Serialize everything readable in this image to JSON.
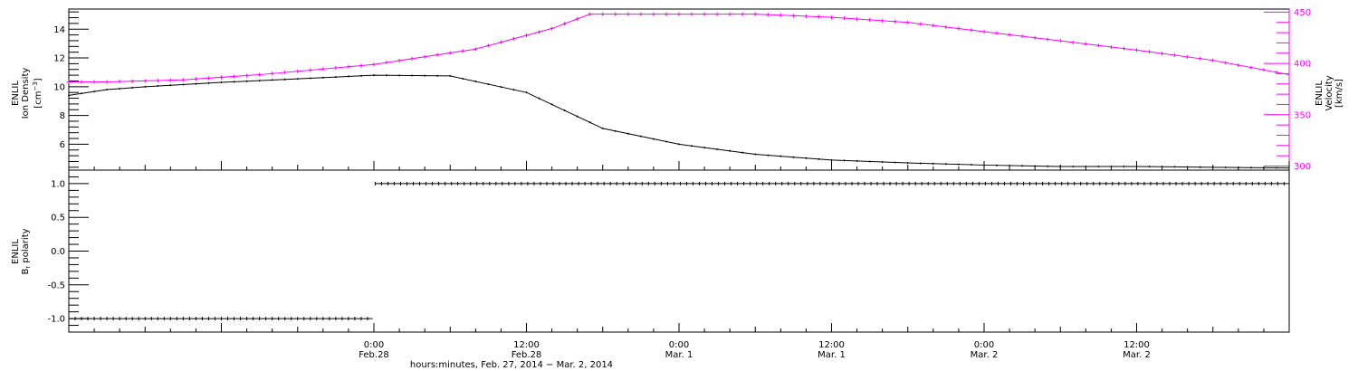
{
  "chart_data": [
    {
      "type": "line",
      "panel": "top",
      "left_axis": {
        "label_line1": "ENLIL",
        "label_line2": "Ion Density",
        "label_line3": "[cm",
        "label_exp": "−3",
        "label_close": "]",
        "ylim": [
          4.2,
          15.4
        ],
        "ticks": [
          6,
          8,
          10,
          12,
          14
        ],
        "tick_labels": [
          "6",
          "8",
          "10",
          "12",
          "14"
        ]
      },
      "right_axis": {
        "label_line1": "ENLIL",
        "label_line2": "Velocity",
        "label_line3": "[km/s]",
        "ylim": [
          296,
          453
        ],
        "ticks": [
          300,
          350,
          400,
          450
        ],
        "tick_labels": [
          "300",
          "350",
          "400",
          "450"
        ],
        "color": "#ff00ff"
      },
      "series": [
        {
          "axis": "left",
          "color": "#000000",
          "x_hours": [
            -24,
            -21,
            -18,
            -12,
            -6,
            0,
            6,
            12,
            18,
            24,
            30,
            36,
            42,
            48,
            54,
            60,
            66,
            72
          ],
          "values": [
            9.4,
            9.8,
            10.0,
            10.3,
            10.55,
            10.8,
            10.75,
            9.6,
            7.1,
            6.0,
            5.3,
            4.9,
            4.7,
            4.55,
            4.45,
            4.45,
            4.4,
            4.35
          ]
        },
        {
          "axis": "right",
          "color": "#ff00ff",
          "x_hours": [
            -24,
            -21,
            -15,
            -9,
            0,
            8,
            14,
            17,
            20,
            24,
            30,
            36,
            42,
            48,
            54,
            60,
            66,
            72
          ],
          "values": [
            382,
            382,
            384,
            389,
            399,
            414,
            434,
            448,
            448,
            448,
            448,
            445,
            440,
            431,
            422,
            413,
            403,
            389
          ]
        }
      ]
    },
    {
      "type": "line",
      "panel": "bottom",
      "left_axis": {
        "label_line1": "ENLIL",
        "label_line2": "B",
        "label_sub": "r",
        "label_rest": " polarity",
        "ylim": [
          -1.2,
          1.2
        ],
        "ticks": [
          -1.0,
          -0.5,
          0.0,
          0.5,
          1.0
        ],
        "tick_labels": [
          "-1.0",
          "-0.5",
          "0.0",
          "0.5",
          "1.0"
        ]
      },
      "series": [
        {
          "color": "#000000",
          "segments": [
            {
              "x_start_hours": -24,
              "x_end_hours": -0.1,
              "value": -1.0
            },
            {
              "x_start_hours": 0.1,
              "x_end_hours": 72,
              "value": 1.0
            }
          ]
        }
      ]
    }
  ],
  "x_axis": {
    "range_hours": [
      -24,
      72
    ],
    "major_ticks": [
      {
        "hours": 0,
        "time": "0:00",
        "date": "Feb.28"
      },
      {
        "hours": 12,
        "time": "12:00",
        "date": "Feb.28"
      },
      {
        "hours": 24,
        "time": "0:00",
        "date": "Mar. 1"
      },
      {
        "hours": 36,
        "time": "12:00",
        "date": "Mar. 1"
      },
      {
        "hours": 48,
        "time": "0:00",
        "date": "Mar. 2"
      },
      {
        "hours": 60,
        "time": "12:00",
        "date": "Mar. 2"
      }
    ],
    "label": "hours:minutes, Feb. 27, 2014 − Mar.  2, 2014"
  }
}
